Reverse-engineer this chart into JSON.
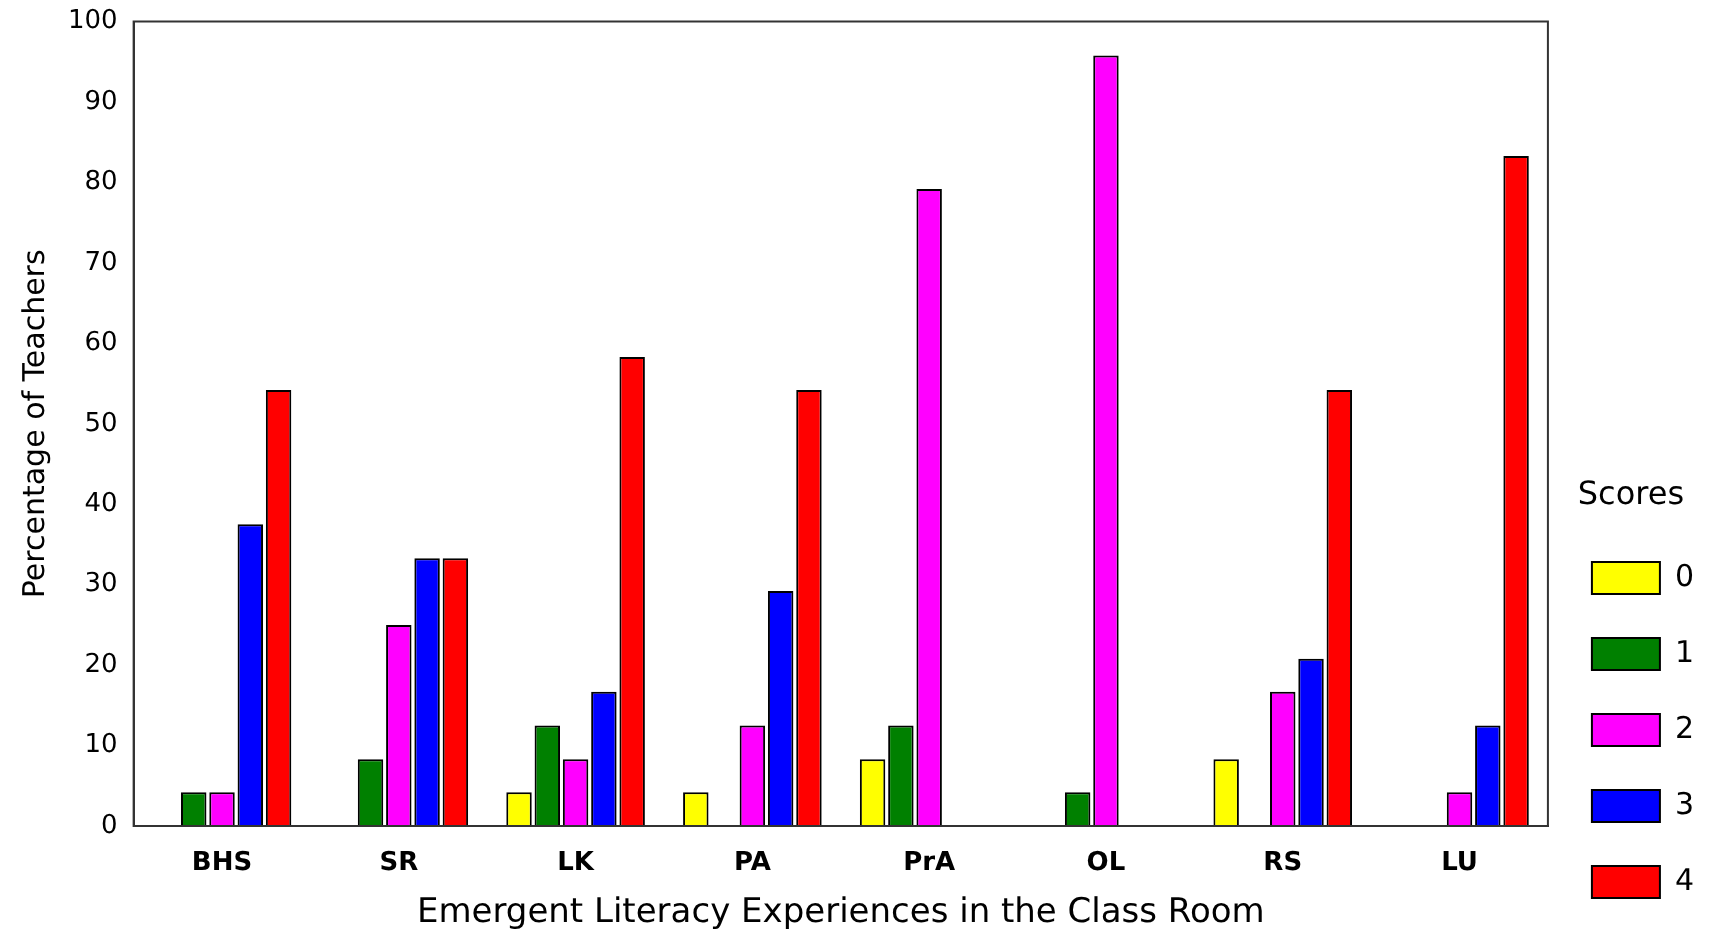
{
  "chart_data": {
    "type": "bar",
    "xlabel": "Emergent Literacy Experiences in the Class Room",
    "ylabel": "Percentage of Teachers",
    "legend_title": "Scores",
    "legend": "right",
    "categories": [
      "BHS",
      "SR",
      "LK",
      "PA",
      "PrA",
      "OL",
      "RS",
      "LU"
    ],
    "series": [
      {
        "name": "0",
        "color": "#ffff00",
        "values": [
          null,
          null,
          4.2,
          4.2,
          8.3,
          null,
          8.3,
          null
        ]
      },
      {
        "name": "1",
        "color": "#008000",
        "values": [
          4.2,
          8.3,
          12.5,
          null,
          12.5,
          4.2,
          null,
          null
        ]
      },
      {
        "name": "2",
        "color": "#ff00ff",
        "values": [
          4.2,
          25,
          8.3,
          12.5,
          79.2,
          95.8,
          16.7,
          4.2
        ]
      },
      {
        "name": "3",
        "color": "#0000ff",
        "values": [
          37.5,
          33.3,
          16.7,
          29.2,
          null,
          null,
          20.8,
          12.5
        ]
      },
      {
        "name": "4",
        "color": "#ff0000",
        "values": [
          54.2,
          33.3,
          58.3,
          54.2,
          null,
          null,
          54.2,
          83.3
        ]
      }
    ],
    "ylim": [
      0,
      100
    ],
    "yticks": [
      0,
      10,
      20,
      30,
      40,
      50,
      60,
      70,
      80,
      90,
      100
    ],
    "grid": false
  }
}
